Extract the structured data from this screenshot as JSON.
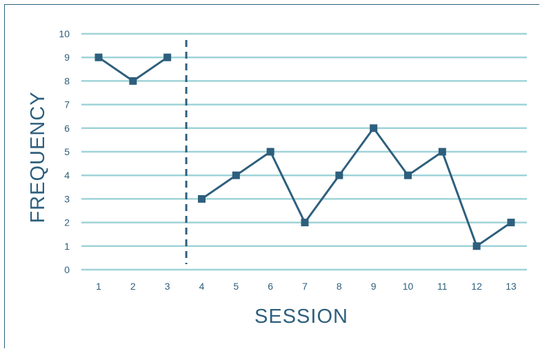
{
  "chart_data": {
    "type": "line",
    "xlabel": "SESSION",
    "ylabel": "FREQUENCY",
    "x": [
      1,
      2,
      3,
      4,
      5,
      6,
      7,
      8,
      9,
      10,
      11,
      12,
      13
    ],
    "xlim": [
      1,
      13
    ],
    "ylim": [
      0,
      10
    ],
    "yticks": [
      0,
      1,
      2,
      3,
      4,
      5,
      6,
      7,
      8,
      9,
      10
    ],
    "grid": "horizontal",
    "phase_change_after_session": 3,
    "series": [
      {
        "points": [
          [
            1,
            9
          ],
          [
            2,
            8
          ],
          [
            3,
            9
          ]
        ]
      },
      {
        "points": [
          [
            4,
            3
          ],
          [
            5,
            4
          ],
          [
            6,
            5
          ],
          [
            7,
            2
          ],
          [
            8,
            4
          ],
          [
            9,
            6
          ],
          [
            10,
            4
          ],
          [
            11,
            5
          ],
          [
            12,
            1
          ],
          [
            13,
            2
          ]
        ]
      }
    ],
    "colors": {
      "grid": "#9fd3d8",
      "line": "#2e5f7d",
      "text": "#2e5f7d",
      "divider": "#2e5f7d"
    }
  }
}
